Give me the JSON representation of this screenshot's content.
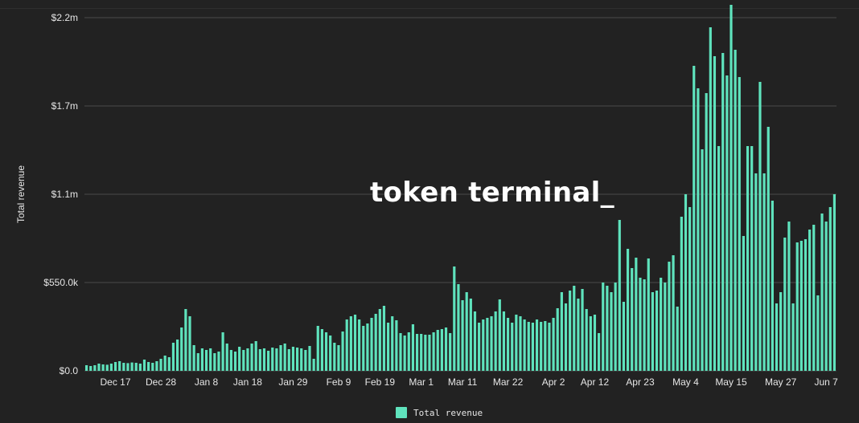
{
  "watermark": "token terminal_",
  "colors": {
    "background": "#222222",
    "bar": "#5fe3bd",
    "grid": "#4a4a4a",
    "text": "#e6e6e6"
  },
  "chart_data": {
    "type": "bar",
    "ylabel": "Total revenue",
    "ylim": [
      0,
      2200000
    ],
    "y_ticks": [
      {
        "value": 0,
        "label": "$0.0"
      },
      {
        "value": 550000,
        "label": "$550.0k"
      },
      {
        "value": 1100000,
        "label": "$1.1m"
      },
      {
        "value": 1650000,
        "label": "$1.7m"
      },
      {
        "value": 2200000,
        "label": "$2.2m"
      }
    ],
    "x_ticks": [
      {
        "index": 7,
        "label": "Dec 17"
      },
      {
        "index": 18,
        "label": "Dec 28"
      },
      {
        "index": 29,
        "label": "Jan 8"
      },
      {
        "index": 39,
        "label": "Jan 18"
      },
      {
        "index": 50,
        "label": "Jan 29"
      },
      {
        "index": 61,
        "label": "Feb 9"
      },
      {
        "index": 71,
        "label": "Feb 19"
      },
      {
        "index": 81,
        "label": "Mar 1"
      },
      {
        "index": 91,
        "label": "Mar 11"
      },
      {
        "index": 102,
        "label": "Mar 22"
      },
      {
        "index": 113,
        "label": "Apr 2"
      },
      {
        "index": 123,
        "label": "Apr 12"
      },
      {
        "index": 134,
        "label": "Apr 23"
      },
      {
        "index": 145,
        "label": "May 4"
      },
      {
        "index": 156,
        "label": "May 15"
      },
      {
        "index": 168,
        "label": "May 27"
      },
      {
        "index": 179,
        "label": "Jun 7"
      }
    ],
    "legend": [
      "Total revenue"
    ],
    "legend_position": "bottom-center",
    "grid": true,
    "series": [
      {
        "name": "Total revenue",
        "values": [
          35000,
          30000,
          35000,
          45000,
          40000,
          38000,
          45000,
          55000,
          60000,
          50000,
          48000,
          52000,
          50000,
          45000,
          70000,
          55000,
          50000,
          60000,
          75000,
          95000,
          85000,
          175000,
          195000,
          270000,
          385000,
          340000,
          160000,
          110000,
          140000,
          130000,
          140000,
          110000,
          120000,
          240000,
          170000,
          130000,
          120000,
          150000,
          130000,
          140000,
          170000,
          185000,
          135000,
          140000,
          125000,
          145000,
          140000,
          160000,
          170000,
          135000,
          150000,
          145000,
          140000,
          130000,
          155000,
          75000,
          280000,
          260000,
          240000,
          220000,
          175000,
          160000,
          245000,
          320000,
          340000,
          350000,
          320000,
          280000,
          295000,
          330000,
          355000,
          385000,
          405000,
          300000,
          340000,
          315000,
          235000,
          220000,
          240000,
          290000,
          230000,
          230000,
          225000,
          225000,
          240000,
          255000,
          260000,
          270000,
          235000,
          650000,
          540000,
          440000,
          490000,
          450000,
          370000,
          300000,
          320000,
          330000,
          340000,
          370000,
          445000,
          370000,
          330000,
          300000,
          350000,
          340000,
          320000,
          305000,
          300000,
          320000,
          305000,
          310000,
          300000,
          330000,
          390000,
          490000,
          420000,
          500000,
          530000,
          450000,
          510000,
          385000,
          340000,
          350000,
          235000,
          550000,
          530000,
          490000,
          550000,
          940000,
          430000,
          760000,
          640000,
          705000,
          580000,
          570000,
          700000,
          490000,
          500000,
          580000,
          550000,
          680000,
          720000,
          400000,
          960000,
          1100000,
          1020000,
          1900000,
          1760000,
          1380000,
          1730000,
          2140000,
          1960000,
          1400000,
          1980000,
          1840000,
          2280000,
          2000000,
          1830000,
          840000,
          1400000,
          1400000,
          1230000,
          1800000,
          1230000,
          1520000,
          1060000,
          420000,
          490000,
          830000,
          930000,
          420000,
          800000,
          810000,
          820000,
          880000,
          910000,
          470000,
          980000,
          930000,
          1020000,
          1100000
        ]
      }
    ]
  }
}
